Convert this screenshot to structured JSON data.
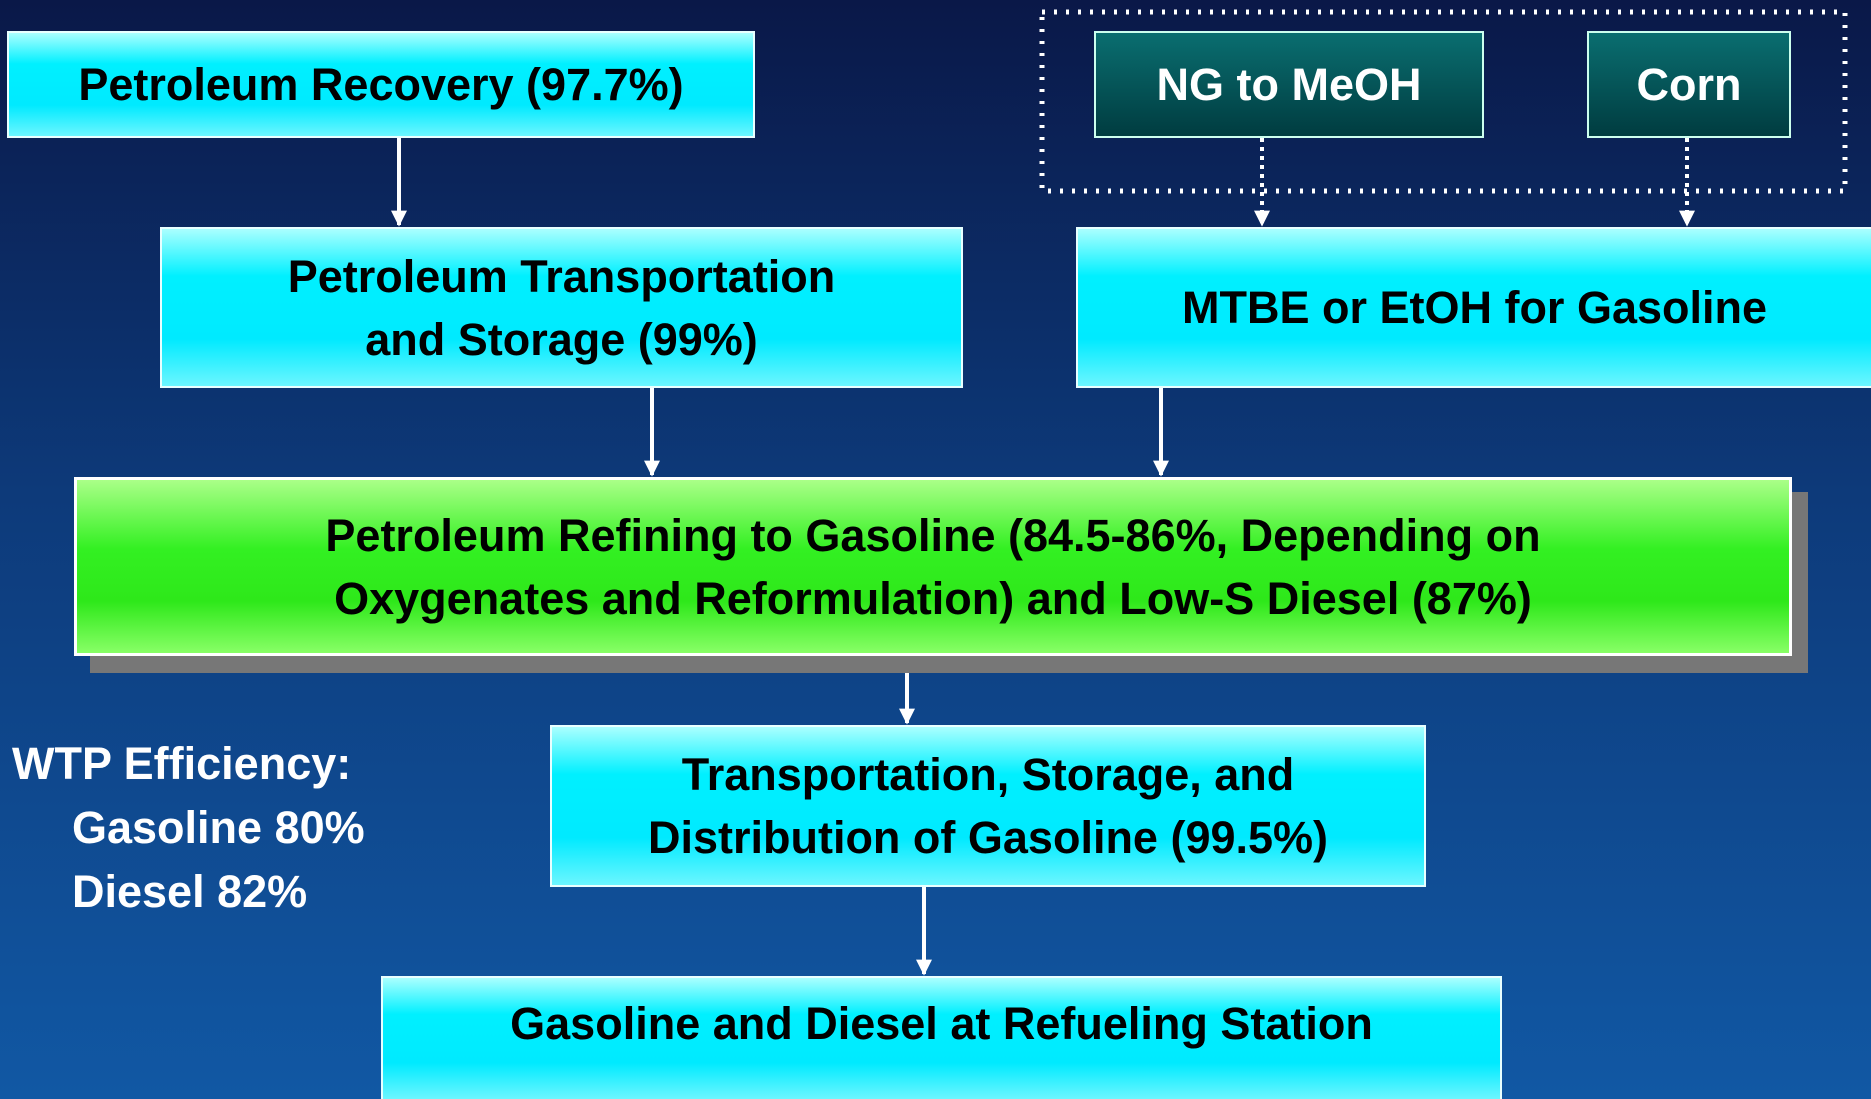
{
  "nodes": [
    {
      "lines": [
        "Petroleum Recovery (97.7%)"
      ]
    },
    {
      "lines": [
        "Petroleum Transportation",
        "and Storage (99%)"
      ]
    },
    {
      "lines": [
        "NG to MeOH"
      ]
    },
    {
      "lines": [
        "Corn"
      ]
    },
    {
      "lines": [
        "MTBE or EtOH for Gasoline"
      ]
    },
    {
      "lines": [
        "Petroleum Refining to Gasoline (84.5-86%, Depending on",
        "Oxygenates and Reformulation) and Low-S Diesel (87%)"
      ]
    },
    {
      "lines": [
        "Transportation, Storage, and",
        "Distribution of Gasoline (99.5%)"
      ]
    },
    {
      "lines": [
        "Gasoline and Diesel at Refueling Station"
      ]
    }
  ],
  "efficiency": {
    "title": "WTP Efficiency:",
    "items": [
      "Gasoline 80%",
      "Diesel 82%"
    ]
  }
}
